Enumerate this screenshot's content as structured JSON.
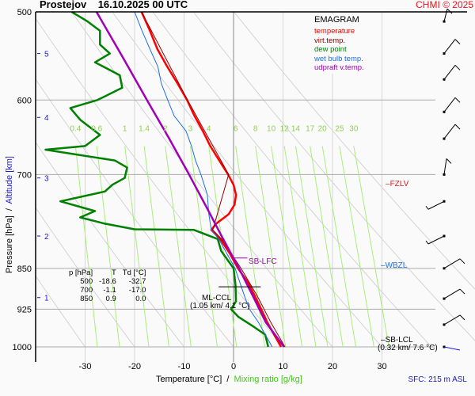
{
  "header": {
    "title": "Prostejov    16.10.2025 00 UTC",
    "copyright": "CHMI © 2025",
    "surface": "SFC: 215 m ASL"
  },
  "axes": {
    "xlabel_temp": "Temperature [°C]  /  ",
    "xlabel_mr": "Mixing ratio [g/kg]",
    "ylabel_p": "Pressure [hPa]  /  ",
    "ylabel_alt": "Altitude [km]"
  },
  "legend": {
    "title": "EMAGRAM",
    "items": [
      {
        "label": "temperature",
        "color": "#ff0000"
      },
      {
        "label": "virt.temp.",
        "color": "#8b0000"
      },
      {
        "label": "dew point",
        "color": "#008000"
      },
      {
        "label": "wet bulb temp.",
        "color": "#1e6ee6"
      },
      {
        "label": "udpraft v.temp.",
        "color": "#a000b4"
      }
    ]
  },
  "info_table": {
    "headers": [
      "p [hPa]",
      "T",
      "Td [°C]"
    ],
    "rows": [
      [
        "500",
        "-18.6",
        "-32.7"
      ],
      [
        "700",
        "-1.1",
        "-17.0"
      ],
      [
        "850",
        "0.9",
        "0.0"
      ]
    ]
  },
  "annotations": {
    "fzlv": "FZLV",
    "wbzl": "WBZL",
    "sb_lfc": "SB-LFC",
    "ml_ccl": "ML-CCL",
    "ml_ccl_detail": "(1.05 km/ 4.1 °C)",
    "sb_lcl": "SB-LCL",
    "sb_lcl_detail": "(0.32 km/ 7.6 °C)"
  },
  "chart_data": {
    "type": "line",
    "title": "Prostejov 16.10.2025 00 UTC - EMAGRAM",
    "xlabel": "Temperature [°C] / Mixing ratio [g/kg]",
    "ylabel": "Pressure [hPa] / Altitude [km]",
    "xlim": [
      -40,
      30
    ],
    "ylim_hpa": [
      1000,
      500
    ],
    "x_ticks": [
      -30,
      -20,
      -10,
      0,
      10,
      20,
      30
    ],
    "pressure_ticks": [
      500,
      600,
      700,
      850,
      925,
      1000
    ],
    "altitude_ticks_km": [
      {
        "label": "1",
        "p": 903
      },
      {
        "label": "2",
        "p": 795
      },
      {
        "label": "3",
        "p": 705
      },
      {
        "label": "4",
        "p": 622
      },
      {
        "label": "5",
        "p": 545
      }
    ],
    "mixing_ratio_labels": [
      "0.4",
      "0.6",
      "1",
      "1.4",
      "2",
      "3",
      "4",
      "6",
      "8",
      "10",
      "12",
      "14",
      "17",
      "20",
      "25",
      "30"
    ],
    "mixing_ratio_values": [
      0.4,
      0.6,
      1,
      1.4,
      2,
      3,
      4,
      6,
      8,
      10,
      12,
      14,
      17,
      20,
      25,
      30
    ],
    "series": [
      {
        "name": "temperature",
        "color": "#ff0000",
        "points": [
          [
            1000,
            9.6
          ],
          [
            975,
            8.2
          ],
          [
            950,
            6.8
          ],
          [
            925,
            5.6
          ],
          [
            900,
            4.3
          ],
          [
            875,
            2.9
          ],
          [
            850,
            0.9
          ],
          [
            825,
            -0.7
          ],
          [
            800,
            -2.7
          ],
          [
            785,
            -4.5
          ],
          [
            775,
            -3.5
          ],
          [
            760,
            -1.0
          ],
          [
            745,
            0.2
          ],
          [
            730,
            0.5
          ],
          [
            715,
            0.0
          ],
          [
            700,
            -1.1
          ],
          [
            680,
            -2.9
          ],
          [
            660,
            -4.7
          ],
          [
            640,
            -6.2
          ],
          [
            620,
            -7.9
          ],
          [
            600,
            -9.4
          ],
          [
            580,
            -11.3
          ],
          [
            560,
            -13.4
          ],
          [
            540,
            -15.4
          ],
          [
            520,
            -16.9
          ],
          [
            500,
            -18.6
          ]
        ]
      },
      {
        "name": "virt.temp.",
        "color": "#8b0000",
        "points": [
          [
            1000,
            10.4
          ],
          [
            950,
            7.5
          ],
          [
            900,
            4.8
          ],
          [
            850,
            1.5
          ],
          [
            800,
            -2.4
          ],
          [
            785,
            -4.2
          ],
          [
            700,
            -1.0
          ],
          [
            600,
            -9.3
          ],
          [
            500,
            -18.6
          ]
        ]
      },
      {
        "name": "dew point",
        "color": "#008000",
        "points": [
          [
            1000,
            7.0
          ],
          [
            975,
            6.4
          ],
          [
            960,
            4.2
          ],
          [
            940,
            1.0
          ],
          [
            925,
            -0.5
          ],
          [
            910,
            0.5
          ],
          [
            880,
            0.4
          ],
          [
            850,
            0.0
          ],
          [
            820,
            -2.5
          ],
          [
            800,
            -3.2
          ],
          [
            785,
            -8.0
          ],
          [
            784,
            -20.0
          ],
          [
            775,
            -26.0
          ],
          [
            765,
            -31.0
          ],
          [
            755,
            -28.0
          ],
          [
            740,
            -35.0
          ],
          [
            725,
            -26.0
          ],
          [
            715,
            -24.5
          ],
          [
            705,
            -22.0
          ],
          [
            690,
            -21.5
          ],
          [
            680,
            -24.0
          ],
          [
            665,
            -38.0
          ],
          [
            660,
            -30.0
          ],
          [
            645,
            -27.0
          ],
          [
            625,
            -31.0
          ],
          [
            610,
            -33.0
          ],
          [
            600,
            -27.5
          ],
          [
            585,
            -22.5
          ],
          [
            570,
            -23.0
          ],
          [
            555,
            -28.0
          ],
          [
            545,
            -25.0
          ],
          [
            535,
            -27.0
          ],
          [
            520,
            -27.0
          ],
          [
            510,
            -29.5
          ],
          [
            500,
            -32.7
          ]
        ]
      },
      {
        "name": "wet bulb temp.",
        "color": "#1e6ee6",
        "points": [
          [
            1000,
            7.8
          ],
          [
            950,
            5.0
          ],
          [
            925,
            3.2
          ],
          [
            900,
            2.2
          ],
          [
            850,
            0.3
          ],
          [
            800,
            -3.0
          ],
          [
            785,
            -4.5
          ],
          [
            760,
            -5.0
          ],
          [
            730,
            -5.3
          ],
          [
            700,
            -6.6
          ],
          [
            680,
            -7.7
          ],
          [
            660,
            -8.5
          ],
          [
            640,
            -9.6
          ],
          [
            620,
            -12.0
          ],
          [
            600,
            -13.3
          ],
          [
            580,
            -14.6
          ],
          [
            560,
            -15.3
          ],
          [
            540,
            -16.9
          ],
          [
            520,
            -18.5
          ],
          [
            500,
            -20.0
          ]
        ]
      },
      {
        "name": "udpraft v.temp.",
        "color": "#a000b4",
        "points": [
          [
            1000,
            10.2
          ],
          [
            950,
            6.5
          ],
          [
            900,
            3.9
          ],
          [
            850,
            1.1
          ],
          [
            800,
            -2.1
          ],
          [
            750,
            -5.4
          ],
          [
            700,
            -9.0
          ],
          [
            650,
            -13.0
          ],
          [
            600,
            -17.5
          ],
          [
            550,
            -22.3
          ],
          [
            500,
            -27.7
          ]
        ]
      }
    ],
    "wind_barbs_hpa": [
      1000,
      955,
      905,
      850,
      795,
      740,
      700,
      650,
      615,
      575,
      545,
      510
    ],
    "grid": true,
    "legend_placement": "top-right"
  }
}
